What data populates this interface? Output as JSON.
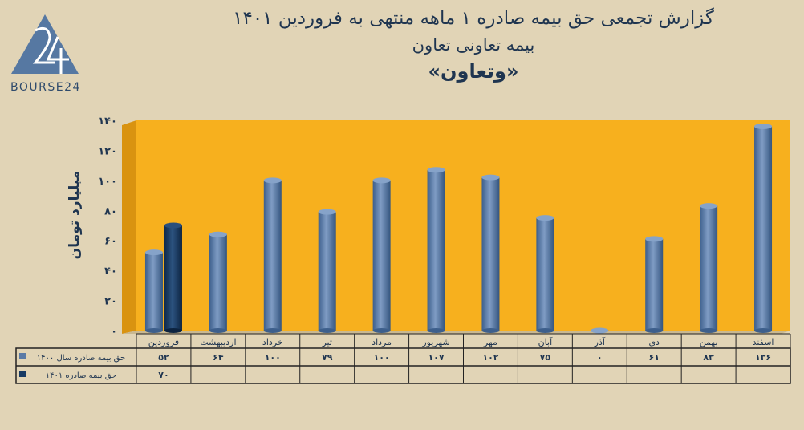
{
  "header": {
    "title": "گزارش تجمعی حق بیمه صادره ۱ ماهه منتهی به فروردین ۱۴۰۱",
    "subtitle": "بیمه تعاونی تعاون",
    "ticker": "«وتعاون»"
  },
  "logo": {
    "text": "BOURSE24",
    "mark": "24"
  },
  "chart_data": {
    "type": "bar",
    "title": "گزارش تجمعی حق بیمه صادره ۱ ماهه منتهی به فروردین ۱۴۰۱",
    "ylabel": "میلیارد تومان",
    "xlabel": "",
    "ylim": [
      0,
      140
    ],
    "yticks": [
      0,
      20,
      40,
      60,
      80,
      100,
      120,
      140
    ],
    "ytick_labels": [
      "۰",
      "۲۰",
      "۴۰",
      "۶۰",
      "۸۰",
      "۱۰۰",
      "۱۲۰",
      "۱۴۰"
    ],
    "grid": false,
    "style": "3d-cylinder",
    "background_color": "#f7b01e",
    "categories": [
      "فروردین",
      "اردیبهشت",
      "خرداد",
      "تیر",
      "مرداد",
      "شهریور",
      "مهر",
      "آبان",
      "آذر",
      "دی",
      "بهمن",
      "اسفند"
    ],
    "series": [
      {
        "name": "حق بیمه صادره سال ۱۴۰۰",
        "color": "#5a7aa6",
        "values": [
          52,
          64,
          100,
          79,
          100,
          107,
          102,
          75,
          0,
          61,
          83,
          136
        ]
      },
      {
        "name": "حق بیمه صادره ۱۴۰۱",
        "color": "#173a63",
        "values": [
          70,
          null,
          null,
          null,
          null,
          null,
          null,
          null,
          null,
          null,
          null,
          null
        ]
      }
    ],
    "data_table": true
  }
}
